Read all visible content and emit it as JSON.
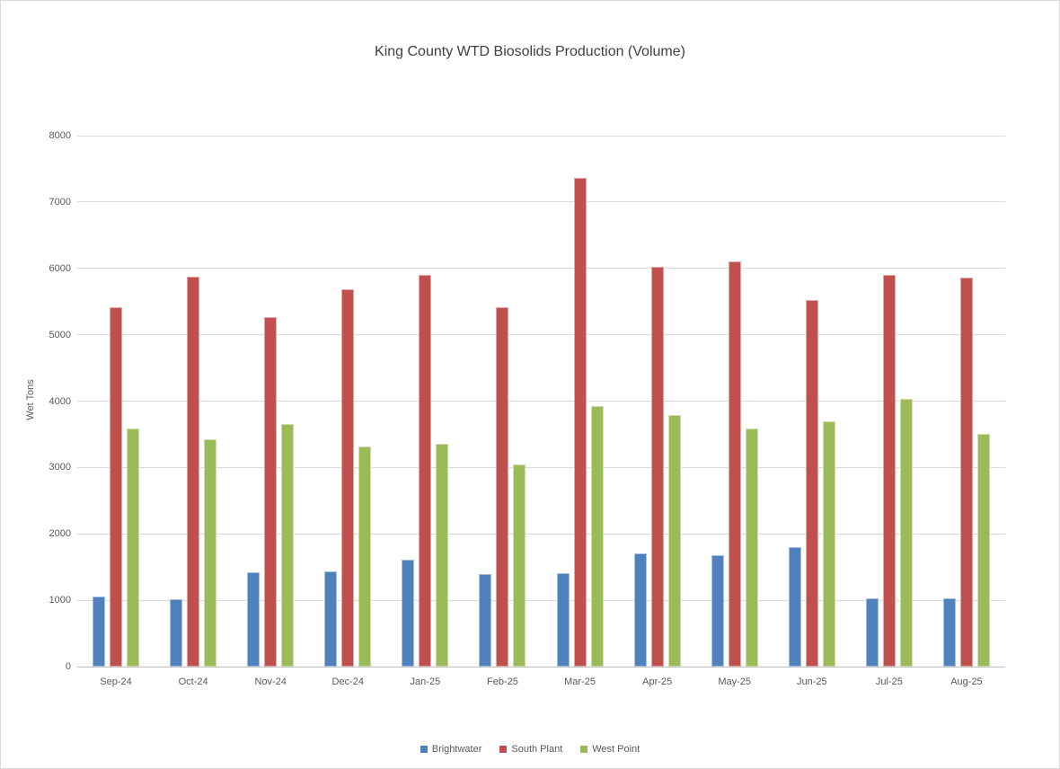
{
  "chart_data": {
    "type": "bar",
    "title": "King County WTD Biosolids Production (Volume)",
    "xlabel": "",
    "ylabel": "Wet Tons",
    "ylim": [
      0,
      8000
    ],
    "yticks": [
      0,
      1000,
      2000,
      3000,
      4000,
      5000,
      6000,
      7000,
      8000
    ],
    "grid": true,
    "legend_position": "bottom-center",
    "categories": [
      "Sep-24",
      "Oct-24",
      "Nov-24",
      "Dec-24",
      "Jan-25",
      "Feb-25",
      "Mar-25",
      "Apr-25",
      "May-25",
      "Jun-25",
      "Jul-25",
      "Aug-25"
    ],
    "series": [
      {
        "name": "Brightwater",
        "color": "#4F81BD",
        "values": [
          1050,
          1020,
          1420,
          1430,
          1610,
          1390,
          1410,
          1710,
          1680,
          1800,
          1030,
          1030
        ]
      },
      {
        "name": "South Plant",
        "color": "#C0504D",
        "values": [
          5410,
          5880,
          5270,
          5680,
          5900,
          5420,
          7370,
          6030,
          6100,
          5520,
          5900,
          5860
        ]
      },
      {
        "name": "West Point",
        "color": "#9BBB59",
        "values": [
          3590,
          3430,
          3660,
          3320,
          3360,
          3050,
          3930,
          3790,
          3590,
          3690,
          4040,
          3510
        ]
      }
    ]
  },
  "colors": {
    "title_text": "#404040",
    "axis_text": "#595959",
    "gridline": "#D9D9D9",
    "baseline": "#BFBFBF",
    "canvas_border": "#D7D7D7"
  }
}
